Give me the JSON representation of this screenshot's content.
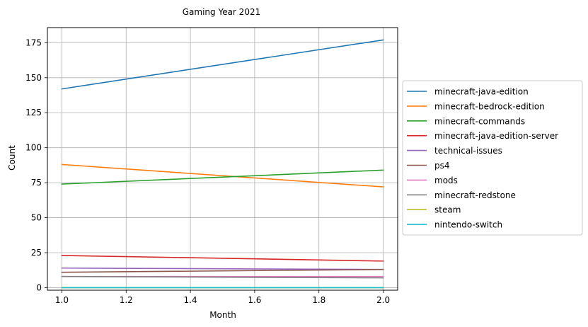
{
  "chart_data": {
    "type": "line",
    "title": "Gaming Year 2021",
    "xlabel": "Month",
    "ylabel": "Count",
    "x": [
      1.0,
      2.0
    ],
    "xlim": [
      0.955,
      2.045
    ],
    "ylim": [
      -1.8,
      185.8
    ],
    "xticks": [
      1.0,
      1.2,
      1.4,
      1.6,
      1.8,
      2.0
    ],
    "xtick_labels": [
      "1.0",
      "1.2",
      "1.4",
      "1.6",
      "1.8",
      "2.0"
    ],
    "yticks": [
      0,
      25,
      50,
      75,
      100,
      125,
      150,
      175
    ],
    "ytick_labels": [
      "0",
      "25",
      "50",
      "75",
      "100",
      "125",
      "150",
      "175"
    ],
    "grid": true,
    "legend_position": "outside-right",
    "series": [
      {
        "name": "minecraft-java-edition",
        "color": "#1f77b4",
        "values": [
          142,
          177
        ]
      },
      {
        "name": "minecraft-bedrock-edition",
        "color": "#ff7f0e",
        "values": [
          88,
          72
        ]
      },
      {
        "name": "minecraft-commands",
        "color": "#2ca02c",
        "values": [
          74,
          84
        ]
      },
      {
        "name": "minecraft-java-edition-server",
        "color": "#d62728",
        "values": [
          23,
          19
        ]
      },
      {
        "name": "technical-issues",
        "color": "#9467bd",
        "values": [
          14,
          13
        ]
      },
      {
        "name": "ps4",
        "color": "#8c564b",
        "values": [
          11,
          13
        ]
      },
      {
        "name": "mods",
        "color": "#e377c2",
        "values": [
          8,
          8
        ]
      },
      {
        "name": "minecraft-redstone",
        "color": "#7f7f7f",
        "values": [
          8,
          7
        ]
      },
      {
        "name": "steam",
        "color": "#bcbd22",
        "values": [
          0,
          0
        ]
      },
      {
        "name": "nintendo-switch",
        "color": "#17becf",
        "values": [
          0,
          0
        ]
      }
    ]
  }
}
